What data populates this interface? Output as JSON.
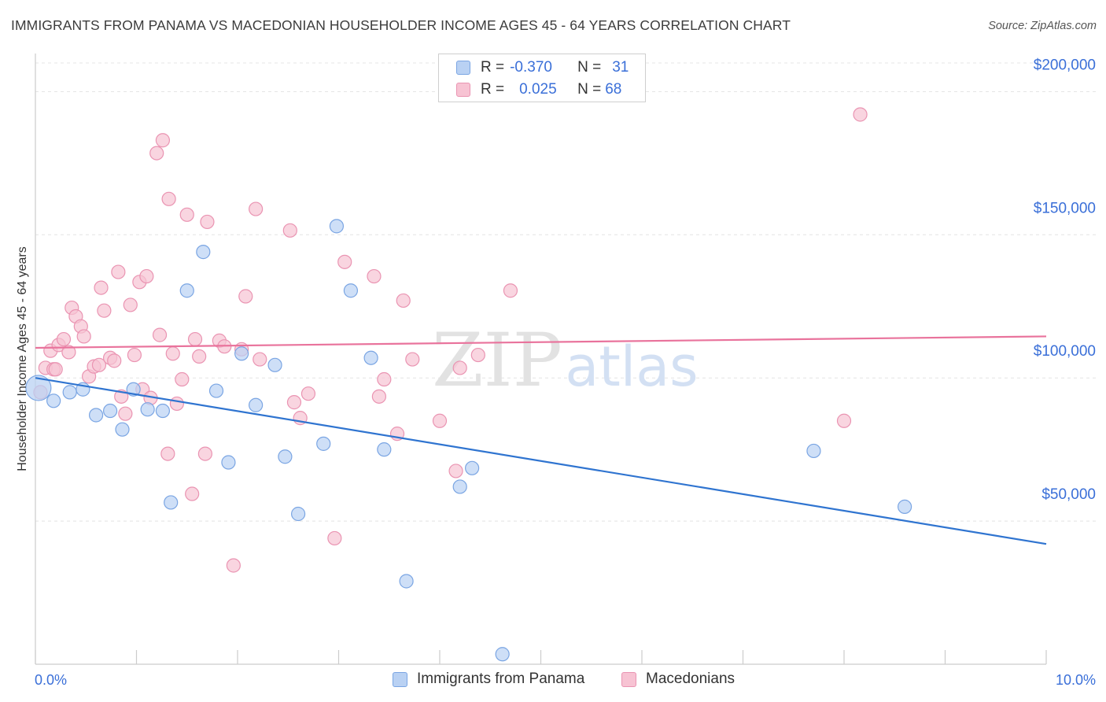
{
  "title": "IMMIGRANTS FROM PANAMA VS MACEDONIAN HOUSEHOLDER INCOME AGES 45 - 64 YEARS CORRELATION CHART",
  "source": "Source: ZipAtlas.com",
  "watermark": {
    "zip": "ZIP",
    "atlas": "atlas"
  },
  "colors": {
    "blue_fill": "#b9d1f3",
    "blue_stroke": "#7aa5e3",
    "blue_line": "#2f74d0",
    "pink_fill": "#f7c3d3",
    "pink_stroke": "#ea94b2",
    "pink_line": "#e9739c",
    "tick_label": "#3a6fd8",
    "grid": "#e4e4e4"
  },
  "legend": {
    "rows": [
      {
        "r_label": "R =",
        "r_value": "-0.370",
        "n_label": "N =",
        "n_value": "31"
      },
      {
        "r_label": "R =",
        "r_value": "0.025",
        "n_label": "N =",
        "n_value": "68"
      }
    ]
  },
  "chart_data": {
    "type": "scatter",
    "title": "IMMIGRANTS FROM PANAMA VS MACEDONIAN HOUSEHOLDER INCOME AGES 45 - 64 YEARS CORRELATION CHART",
    "xlabel": "",
    "ylabel": "Householder Income Ages 45 - 64 years",
    "xlim": [
      0,
      10
    ],
    "ylim": [
      0,
      210000
    ],
    "x_tick_labels": [
      "0.0%",
      "10.0%"
    ],
    "y_ticks": [
      {
        "value": 50000,
        "label": "$50,000"
      },
      {
        "value": 100000,
        "label": "$100,000"
      },
      {
        "value": 150000,
        "label": "$150,000"
      },
      {
        "value": 200000,
        "label": "$200,000"
      }
    ],
    "series": [
      {
        "name": "Immigrants from Panama",
        "color": "blue",
        "trend": {
          "x": [
            0,
            10
          ],
          "y": [
            100000,
            42000
          ]
        },
        "points": [
          [
            0.03,
            96500
          ],
          [
            0.18,
            92000
          ],
          [
            0.34,
            95000
          ],
          [
            0.47,
            96000
          ],
          [
            0.6,
            87000
          ],
          [
            0.74,
            88500
          ],
          [
            0.86,
            82000
          ],
          [
            0.97,
            96000
          ],
          [
            1.11,
            89000
          ],
          [
            1.26,
            88500
          ],
          [
            1.34,
            56500
          ],
          [
            1.5,
            130500
          ],
          [
            1.66,
            144000
          ],
          [
            1.79,
            95500
          ],
          [
            1.91,
            70500
          ],
          [
            2.04,
            108500
          ],
          [
            2.18,
            90500
          ],
          [
            2.37,
            104500
          ],
          [
            2.47,
            72500
          ],
          [
            2.6,
            52500
          ],
          [
            2.85,
            77000
          ],
          [
            2.98,
            153000
          ],
          [
            3.12,
            130500
          ],
          [
            3.32,
            107000
          ],
          [
            3.45,
            75000
          ],
          [
            3.67,
            29000
          ],
          [
            4.2,
            62000
          ],
          [
            4.32,
            68500
          ],
          [
            4.62,
            3500
          ],
          [
            7.7,
            74500
          ],
          [
            8.6,
            55000
          ]
        ]
      },
      {
        "name": "Macedonians",
        "color": "pink",
        "trend": {
          "x": [
            0,
            10
          ],
          "y": [
            110500,
            114500
          ]
        },
        "points": [
          [
            0.05,
            95000
          ],
          [
            0.1,
            103500
          ],
          [
            0.15,
            109500
          ],
          [
            0.18,
            103000
          ],
          [
            0.23,
            111500
          ],
          [
            0.28,
            113500
          ],
          [
            0.33,
            109000
          ],
          [
            0.36,
            124500
          ],
          [
            0.4,
            121500
          ],
          [
            0.45,
            118000
          ],
          [
            0.48,
            114500
          ],
          [
            0.53,
            100500
          ],
          [
            0.58,
            104000
          ],
          [
            0.63,
            104500
          ],
          [
            0.65,
            131500
          ],
          [
            0.68,
            123500
          ],
          [
            0.74,
            107000
          ],
          [
            0.78,
            106000
          ],
          [
            0.82,
            137000
          ],
          [
            0.85,
            93500
          ],
          [
            0.89,
            87500
          ],
          [
            0.94,
            125500
          ],
          [
            0.98,
            108000
          ],
          [
            1.03,
            133500
          ],
          [
            1.06,
            96000
          ],
          [
            1.1,
            135500
          ],
          [
            1.14,
            93000
          ],
          [
            1.2,
            178500
          ],
          [
            1.23,
            115000
          ],
          [
            1.26,
            183000
          ],
          [
            1.32,
            162500
          ],
          [
            1.36,
            108500
          ],
          [
            1.4,
            91000
          ],
          [
            1.45,
            99500
          ],
          [
            1.5,
            157000
          ],
          [
            1.55,
            59500
          ],
          [
            1.58,
            113500
          ],
          [
            1.62,
            107500
          ],
          [
            1.68,
            73500
          ],
          [
            1.7,
            154500
          ],
          [
            1.82,
            113000
          ],
          [
            1.87,
            111000
          ],
          [
            1.96,
            34500
          ],
          [
            2.04,
            110000
          ],
          [
            2.08,
            128500
          ],
          [
            2.18,
            159000
          ],
          [
            2.22,
            106500
          ],
          [
            2.52,
            151500
          ],
          [
            2.56,
            91500
          ],
          [
            2.62,
            86000
          ],
          [
            2.7,
            94500
          ],
          [
            2.96,
            44000
          ],
          [
            3.06,
            140500
          ],
          [
            3.35,
            135500
          ],
          [
            3.4,
            93500
          ],
          [
            3.45,
            99500
          ],
          [
            3.58,
            80500
          ],
          [
            3.64,
            127000
          ],
          [
            3.73,
            106500
          ],
          [
            4.0,
            85000
          ],
          [
            4.16,
            67500
          ],
          [
            4.2,
            103500
          ],
          [
            4.38,
            108000
          ],
          [
            4.7,
            130500
          ],
          [
            1.31,
            73500
          ],
          [
            0.2,
            103000
          ],
          [
            8.0,
            85000
          ],
          [
            8.16,
            192000
          ]
        ]
      }
    ]
  },
  "bottom_legend": [
    "Immigrants from Panama",
    "Macedonians"
  ]
}
